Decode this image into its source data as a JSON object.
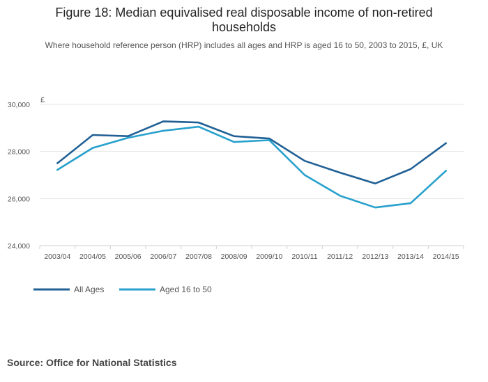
{
  "chart_data": {
    "type": "line",
    "title_line1": "Figure 18: Median equivalised real disposable income of non-retired",
    "title_line2": "households",
    "subtitle": "Where household reference person (HRP) includes all ages and HRP is aged 16 to 50, 2003 to 2015, £, UK",
    "ylabel": "£",
    "xlabel": "",
    "ylim": [
      24000,
      30000
    ],
    "yticks": [
      24000,
      26000,
      28000,
      30000
    ],
    "ytick_labels": [
      "24,000",
      "26,000",
      "28,000",
      "30,000"
    ],
    "categories": [
      "2003/04",
      "2004/05",
      "2005/06",
      "2006/07",
      "2007/08",
      "2008/09",
      "2009/10",
      "2010/11",
      "2011/12",
      "2012/13",
      "2013/14",
      "2014/15"
    ],
    "series": [
      {
        "name": "All Ages",
        "color": "#206095",
        "values": [
          27500,
          28700,
          28650,
          29280,
          29230,
          28650,
          28550,
          27600,
          27100,
          26640,
          27250,
          28350
        ]
      },
      {
        "name": "Aged 16 to 50",
        "color": "#27a0cc",
        "values": [
          27220,
          28150,
          28580,
          28880,
          29050,
          28400,
          28480,
          27000,
          26120,
          25620,
          25800,
          27180
        ]
      }
    ],
    "source": "Source: Office for National Statistics"
  }
}
